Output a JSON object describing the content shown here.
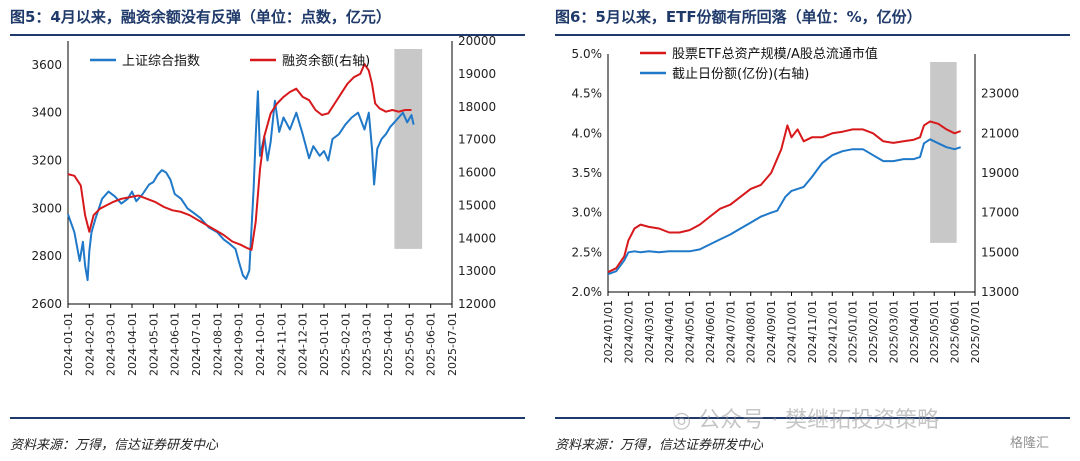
{
  "left": {
    "title": "图5：4月以来，融资余额没有反弹（单位：点数，亿元）",
    "source": "资料来源：万得，信达证券研发中心"
  },
  "right": {
    "title": "图6：5月以来，ETF份额有所回落（单位：%，亿份）",
    "source": "资料来源：万得，信达证券研发中心"
  },
  "watermark": {
    "wechat": "公众号 · 樊继拓投资策略",
    "logo": "格隆汇"
  },
  "colors": {
    "blue": "#1f78c8",
    "red": "#d7191c",
    "highlight": "#c8c8c8",
    "title": "#1f3a6a"
  },
  "chart_data": [
    {
      "type": "line",
      "title": "图5：4月以来，融资余额没有反弹（单位：点数，亿元）",
      "categories": [
        "2024-01-01",
        "2024-02-01",
        "2024-03-01",
        "2024-04-01",
        "2024-05-01",
        "2024-06-01",
        "2024-07-01",
        "2024-08-01",
        "2024-09-01",
        "2024-10-01",
        "2024-11-01",
        "2024-12-01",
        "2025-01-01",
        "2025-02-01",
        "2025-03-01",
        "2025-04-01",
        "2025-05-01",
        "2025-06-01",
        "2025-07-01"
      ],
      "ylim_left": [
        2600,
        3700
      ],
      "ylim_right": [
        12000,
        20000
      ],
      "yticks_left": [
        2600,
        2800,
        3000,
        3200,
        3400,
        3600
      ],
      "yticks_right": [
        12000,
        13000,
        14000,
        15000,
        16000,
        17000,
        18000,
        19000,
        20000
      ],
      "highlight": {
        "from": 15.3,
        "to": 16.6
      },
      "legend": "top",
      "series": [
        {
          "name": "上证综合指数",
          "axis": "left",
          "color": "#1f78c8",
          "points": [
            [
              0,
              2975
            ],
            [
              0.3,
              2900
            ],
            [
              0.55,
              2780
            ],
            [
              0.7,
              2860
            ],
            [
              0.8,
              2760
            ],
            [
              0.92,
              2700
            ],
            [
              1.0,
              2820
            ],
            [
              1.1,
              2900
            ],
            [
              1.3,
              2960
            ],
            [
              1.6,
              3040
            ],
            [
              1.9,
              3070
            ],
            [
              2.2,
              3050
            ],
            [
              2.5,
              3020
            ],
            [
              2.8,
              3040
            ],
            [
              3.0,
              3070
            ],
            [
              3.2,
              3030
            ],
            [
              3.5,
              3060
            ],
            [
              3.8,
              3100
            ],
            [
              4.0,
              3110
            ],
            [
              4.2,
              3140
            ],
            [
              4.4,
              3160
            ],
            [
              4.6,
              3150
            ],
            [
              4.8,
              3120
            ],
            [
              5.0,
              3060
            ],
            [
              5.3,
              3040
            ],
            [
              5.6,
              3000
            ],
            [
              5.9,
              2980
            ],
            [
              6.2,
              2960
            ],
            [
              6.6,
              2920
            ],
            [
              7.0,
              2900
            ],
            [
              7.3,
              2870
            ],
            [
              7.6,
              2850
            ],
            [
              7.85,
              2830
            ],
            [
              8.0,
              2780
            ],
            [
              8.2,
              2720
            ],
            [
              8.35,
              2705
            ],
            [
              8.5,
              2740
            ],
            [
              8.7,
              3080
            ],
            [
              8.8,
              3300
            ],
            [
              8.9,
              3490
            ],
            [
              9.0,
              3220
            ],
            [
              9.2,
              3300
            ],
            [
              9.35,
              3200
            ],
            [
              9.5,
              3280
            ],
            [
              9.7,
              3450
            ],
            [
              9.9,
              3320
            ],
            [
              10.1,
              3380
            ],
            [
              10.4,
              3330
            ],
            [
              10.7,
              3400
            ],
            [
              11.0,
              3310
            ],
            [
              11.3,
              3210
            ],
            [
              11.5,
              3260
            ],
            [
              11.8,
              3220
            ],
            [
              12.0,
              3240
            ],
            [
              12.2,
              3200
            ],
            [
              12.4,
              3290
            ],
            [
              12.7,
              3310
            ],
            [
              13.0,
              3350
            ],
            [
              13.3,
              3380
            ],
            [
              13.6,
              3400
            ],
            [
              13.9,
              3330
            ],
            [
              14.1,
              3400
            ],
            [
              14.25,
              3250
            ],
            [
              14.35,
              3100
            ],
            [
              14.5,
              3250
            ],
            [
              14.7,
              3290
            ],
            [
              14.9,
              3310
            ],
            [
              15.1,
              3340
            ],
            [
              15.3,
              3360
            ],
            [
              15.5,
              3380
            ],
            [
              15.7,
              3400
            ],
            [
              15.9,
              3360
            ],
            [
              16.1,
              3390
            ],
            [
              16.2,
              3350
            ]
          ]
        },
        {
          "name": "融资余额(右轴)",
          "axis": "right",
          "color": "#d7191c",
          "points": [
            [
              0,
              15950
            ],
            [
              0.3,
              15900
            ],
            [
              0.6,
              15600
            ],
            [
              0.8,
              14700
            ],
            [
              1.0,
              14200
            ],
            [
              1.2,
              14700
            ],
            [
              1.5,
              14900
            ],
            [
              1.8,
              15000
            ],
            [
              2.1,
              15100
            ],
            [
              2.5,
              15200
            ],
            [
              2.9,
              15250
            ],
            [
              3.3,
              15300
            ],
            [
              3.7,
              15200
            ],
            [
              4.1,
              15100
            ],
            [
              4.5,
              14950
            ],
            [
              4.9,
              14850
            ],
            [
              5.3,
              14800
            ],
            [
              5.7,
              14700
            ],
            [
              6.1,
              14550
            ],
            [
              6.5,
              14400
            ],
            [
              6.9,
              14250
            ],
            [
              7.3,
              14100
            ],
            [
              7.7,
              13900
            ],
            [
              8.1,
              13800
            ],
            [
              8.4,
              13700
            ],
            [
              8.6,
              13650
            ],
            [
              8.8,
              14500
            ],
            [
              9.0,
              16100
            ],
            [
              9.2,
              17100
            ],
            [
              9.5,
              17800
            ],
            [
              9.8,
              18100
            ],
            [
              10.1,
              18300
            ],
            [
              10.4,
              18450
            ],
            [
              10.7,
              18550
            ],
            [
              11.0,
              18300
            ],
            [
              11.3,
              18200
            ],
            [
              11.6,
              17900
            ],
            [
              11.9,
              17750
            ],
            [
              12.2,
              17800
            ],
            [
              12.5,
              18100
            ],
            [
              12.8,
              18400
            ],
            [
              13.1,
              18700
            ],
            [
              13.4,
              18900
            ],
            [
              13.7,
              19000
            ],
            [
              13.9,
              19300
            ],
            [
              14.1,
              19100
            ],
            [
              14.25,
              18700
            ],
            [
              14.4,
              18100
            ],
            [
              14.6,
              17950
            ],
            [
              14.9,
              17850
            ],
            [
              15.2,
              17900
            ],
            [
              15.5,
              17850
            ],
            [
              15.8,
              17900
            ],
            [
              16.1,
              17900
            ]
          ]
        }
      ]
    },
    {
      "type": "line",
      "title": "图6：5月以来，ETF份额有所回落（单位：%，亿份）",
      "categories": [
        "2024/01/01",
        "2024/02/01",
        "2024/03/01",
        "2024/04/01",
        "2024/05/01",
        "2024/06/01",
        "2024/07/01",
        "2024/08/01",
        "2024/09/01",
        "2024/10/01",
        "2024/11/01",
        "2024/12/01",
        "2025/01/01",
        "2025/02/01",
        "2025/03/01",
        "2025/04/01",
        "2025/05/01",
        "2025/06/01",
        "2025/07/01"
      ],
      "ylim_left": [
        2.0,
        5.0
      ],
      "ylim_right": [
        13000,
        25000
      ],
      "yticks_left": [
        "2.0%",
        "2.5%",
        "3.0%",
        "3.5%",
        "4.0%",
        "4.5%",
        "5.0%"
      ],
      "yticks_right": [
        13000,
        15000,
        17000,
        19000,
        21000,
        23000
      ],
      "highlight": {
        "from": 15.8,
        "to": 17.1
      },
      "legend": "top",
      "series": [
        {
          "name": "股票ETF总资产规模/A股总流通市值",
          "axis": "left",
          "color": "#d7191c",
          "points": [
            [
              0,
              2.25
            ],
            [
              0.4,
              2.3
            ],
            [
              0.8,
              2.45
            ],
            [
              1.0,
              2.65
            ],
            [
              1.3,
              2.8
            ],
            [
              1.6,
              2.85
            ],
            [
              2.0,
              2.82
            ],
            [
              2.5,
              2.8
            ],
            [
              3.0,
              2.75
            ],
            [
              3.5,
              2.75
            ],
            [
              4.0,
              2.78
            ],
            [
              4.5,
              2.85
            ],
            [
              5.0,
              2.95
            ],
            [
              5.5,
              3.05
            ],
            [
              6.0,
              3.1
            ],
            [
              6.5,
              3.2
            ],
            [
              7.0,
              3.3
            ],
            [
              7.5,
              3.35
            ],
            [
              8.0,
              3.5
            ],
            [
              8.5,
              3.8
            ],
            [
              8.8,
              4.1
            ],
            [
              9.0,
              3.95
            ],
            [
              9.3,
              4.05
            ],
            [
              9.6,
              3.9
            ],
            [
              10.0,
              3.95
            ],
            [
              10.5,
              3.95
            ],
            [
              11.0,
              4.0
            ],
            [
              11.5,
              4.02
            ],
            [
              12.0,
              4.05
            ],
            [
              12.5,
              4.05
            ],
            [
              13.0,
              4.0
            ],
            [
              13.5,
              3.9
            ],
            [
              14.0,
              3.88
            ],
            [
              14.5,
              3.9
            ],
            [
              15.0,
              3.92
            ],
            [
              15.3,
              3.95
            ],
            [
              15.5,
              4.1
            ],
            [
              15.8,
              4.15
            ],
            [
              16.2,
              4.12
            ],
            [
              16.6,
              4.05
            ],
            [
              17.0,
              4.0
            ],
            [
              17.3,
              4.03
            ]
          ]
        },
        {
          "name": "截止日份额(亿份)(右轴)",
          "axis": "right",
          "color": "#1f78c8",
          "points": [
            [
              0,
              13900
            ],
            [
              0.4,
              14050
            ],
            [
              0.8,
              14600
            ],
            [
              1.0,
              15000
            ],
            [
              1.3,
              15050
            ],
            [
              1.6,
              15000
            ],
            [
              2.0,
              15050
            ],
            [
              2.5,
              15000
            ],
            [
              3.0,
              15050
            ],
            [
              3.5,
              15050
            ],
            [
              4.0,
              15050
            ],
            [
              4.5,
              15150
            ],
            [
              5.0,
              15400
            ],
            [
              5.5,
              15650
            ],
            [
              6.0,
              15900
            ],
            [
              6.5,
              16200
            ],
            [
              7.0,
              16500
            ],
            [
              7.5,
              16800
            ],
            [
              8.0,
              17000
            ],
            [
              8.3,
              17100
            ],
            [
              8.7,
              17800
            ],
            [
              9.0,
              18100
            ],
            [
              9.3,
              18200
            ],
            [
              9.6,
              18300
            ],
            [
              10.0,
              18800
            ],
            [
              10.5,
              19500
            ],
            [
              11.0,
              19900
            ],
            [
              11.5,
              20100
            ],
            [
              12.0,
              20200
            ],
            [
              12.5,
              20200
            ],
            [
              13.0,
              19900
            ],
            [
              13.5,
              19600
            ],
            [
              14.0,
              19600
            ],
            [
              14.5,
              19700
            ],
            [
              15.0,
              19700
            ],
            [
              15.3,
              19800
            ],
            [
              15.5,
              20500
            ],
            [
              15.8,
              20700
            ],
            [
              16.2,
              20500
            ],
            [
              16.6,
              20300
            ],
            [
              17.0,
              20200
            ],
            [
              17.3,
              20300
            ]
          ]
        }
      ]
    }
  ]
}
